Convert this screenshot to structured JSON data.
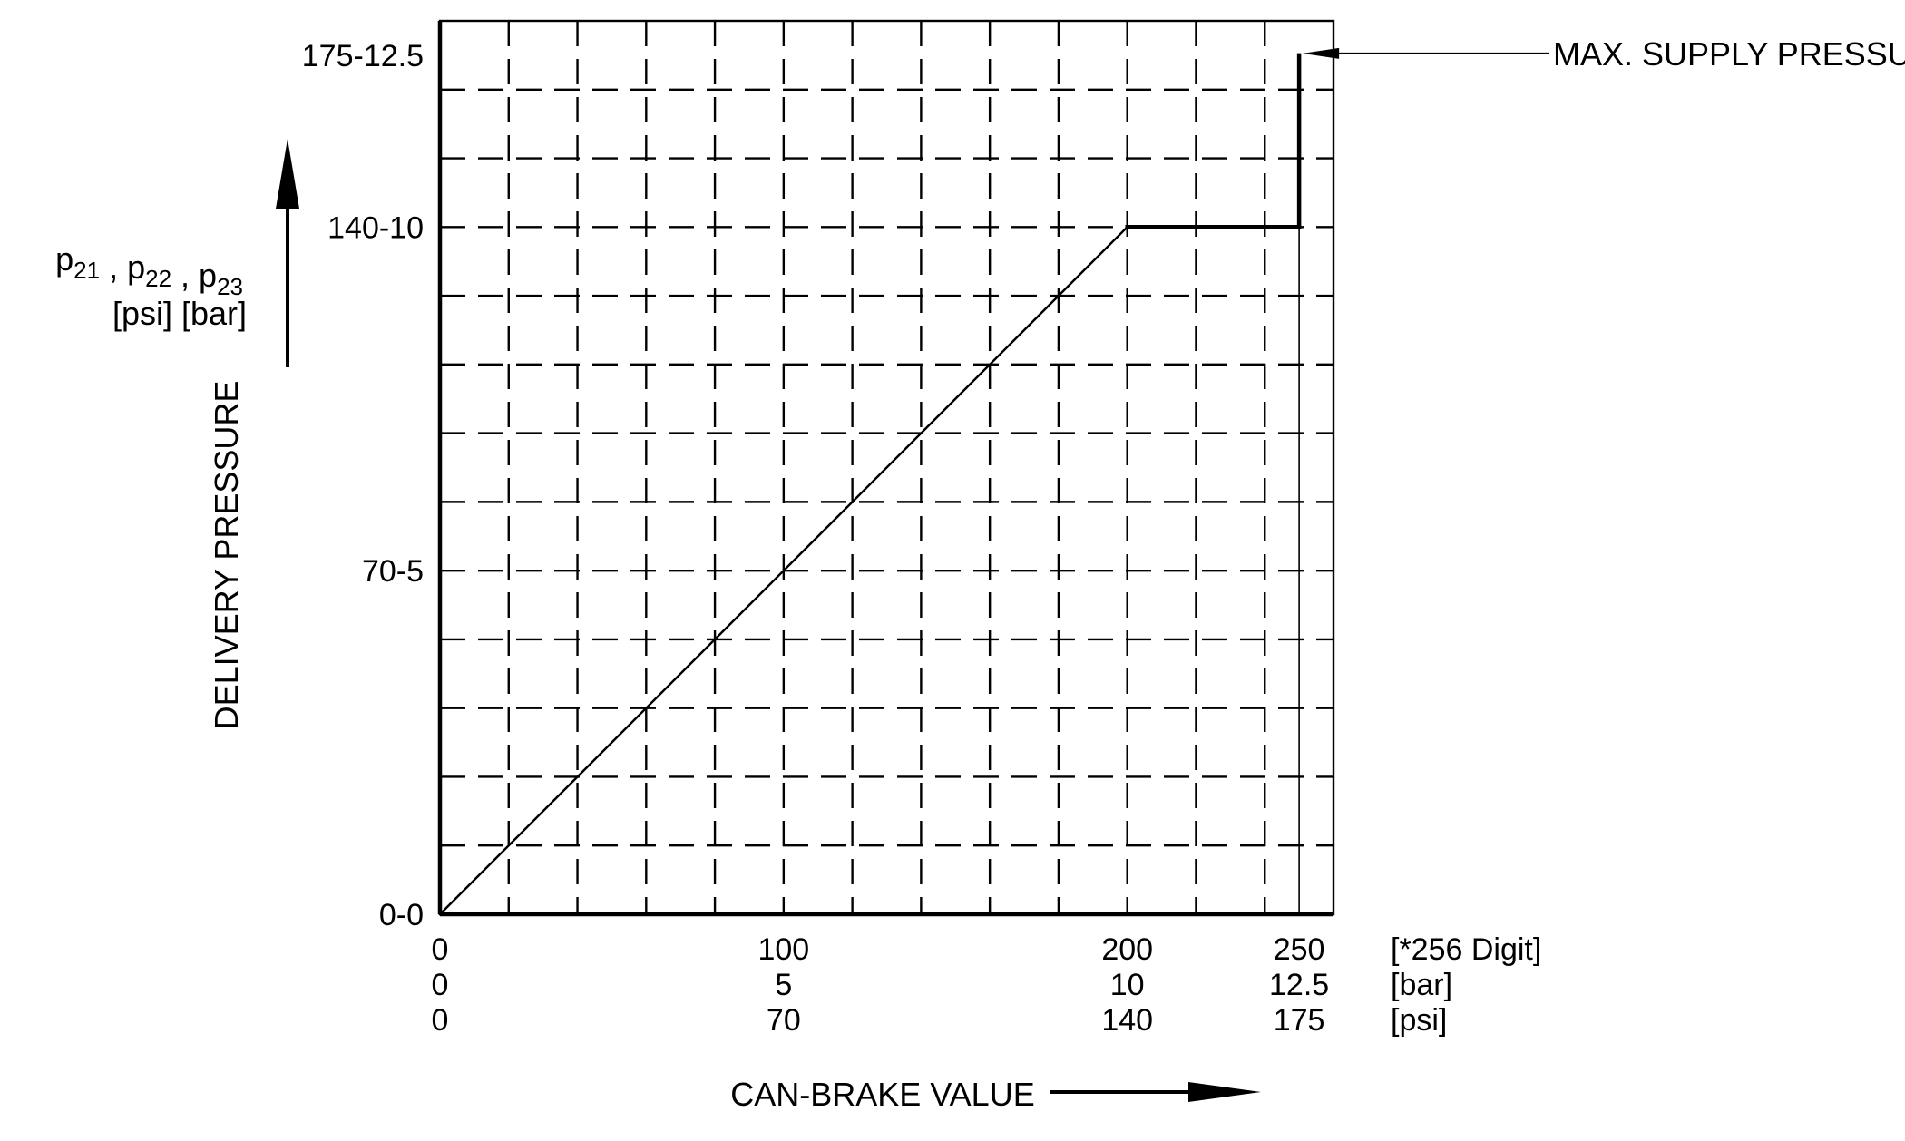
{
  "chart_data": {
    "type": "line",
    "title": "",
    "x_axis": {
      "title": "CAN-BRAKE VALUE",
      "range": [
        0,
        260
      ],
      "tick_rows": [
        {
          "unit": "[*256 Digit]",
          "positions": [
            0,
            100,
            200,
            250
          ],
          "labels": [
            "0",
            "100",
            "200",
            "250"
          ]
        },
        {
          "unit": "[bar]",
          "positions": [
            0,
            100,
            200,
            250
          ],
          "labels": [
            "0",
            "5",
            "10",
            "12.5"
          ]
        },
        {
          "unit": "[psi]",
          "positions": [
            0,
            100,
            200,
            250
          ],
          "labels": [
            "0",
            "70",
            "140",
            "175"
          ]
        }
      ]
    },
    "y_axis": {
      "title": "DELIVERY PRESSURE",
      "symbols": [
        "p21",
        "p22",
        "p23"
      ],
      "symbol_base": "p",
      "symbol_subscripts": [
        "21",
        "22",
        "23"
      ],
      "units": "[psi] [bar]",
      "range_bar": [
        0,
        13
      ],
      "ticks": [
        {
          "value_bar": 0,
          "label": "0-0"
        },
        {
          "value_bar": 5,
          "label": "70-5"
        },
        {
          "value_bar": 10,
          "label": "140-10"
        },
        {
          "value_bar": 12.5,
          "label": "175-12.5"
        }
      ]
    },
    "grid": true,
    "grid_style": "dashed",
    "series": [
      {
        "x_unit": "*256 Digit",
        "y_unit": "bar",
        "points": [
          [
            0,
            0
          ],
          [
            200,
            10
          ],
          [
            250,
            10
          ],
          [
            250,
            12.5
          ]
        ]
      }
    ],
    "annotations": [
      {
        "text": "MAX. SUPPLY PRESSURE",
        "x": 250,
        "y_bar": 12.5
      }
    ]
  }
}
